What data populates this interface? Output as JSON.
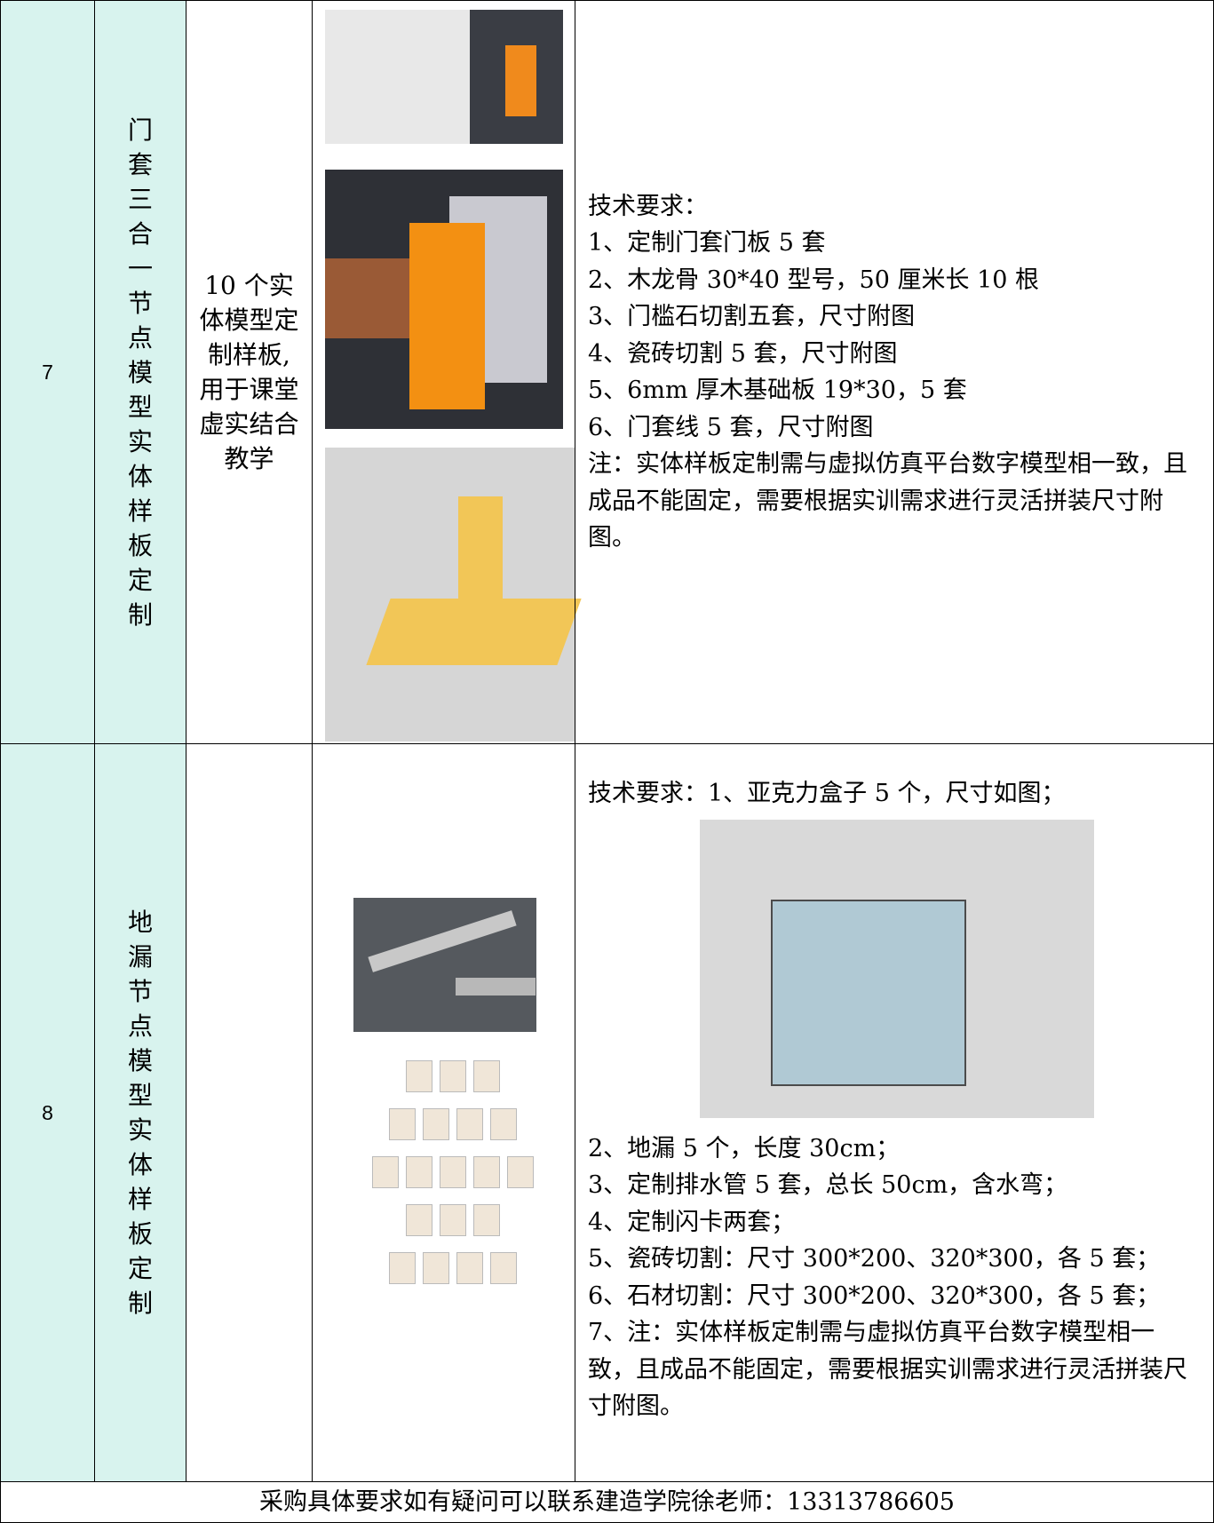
{
  "table": {
    "rows": [
      {
        "no": "7",
        "name": "门套三合一节点模型实体样板定制",
        "quantity": "10 个实体模型定制样板,用于课堂虚实结合教学",
        "requirements": [
          "技术要求：",
          "1、定制门套门板 5 套",
          "2、木龙骨 30*40 型号，50 厘米长 10 根",
          "3、门槛石切割五套，尺寸附图",
          "4、瓷砖切割 5 套，尺寸附图",
          "5、6mm 厚木基础板 19*30，5 套",
          "6、门套线 5 套，尺寸附图",
          "注：实体样板定制需与虚拟仿真平台数字模型相一致，且成品不能固定，需要根据实训需求进行灵活拼装尺寸附图。"
        ]
      },
      {
        "no": "8",
        "name": "地漏节点模型实体样板定制",
        "requirements": [
          "技术要求：1、亚克力盒子 5 个，尺寸如图；"
        ],
        "requirements_after": [
          "2、地漏 5 个，长度 30cm；",
          "3、定制排水管 5 套，总长 50cm，含水弯；",
          "4、定制闪卡两套；",
          "5、瓷砖切割：尺寸 300*200、320*300，各 5 套；",
          "6、石材切割：尺寸 300*200、320*300，各 5 套；",
          "7、注：实体样板定制需与虚拟仿真平台数字模型相一致，且成品不能固定，需要根据实训需求进行灵活拼装尺寸附图。"
        ]
      }
    ],
    "footer": "采购具体要求如有疑问可以联系建造学院徐老师：13313786605"
  }
}
